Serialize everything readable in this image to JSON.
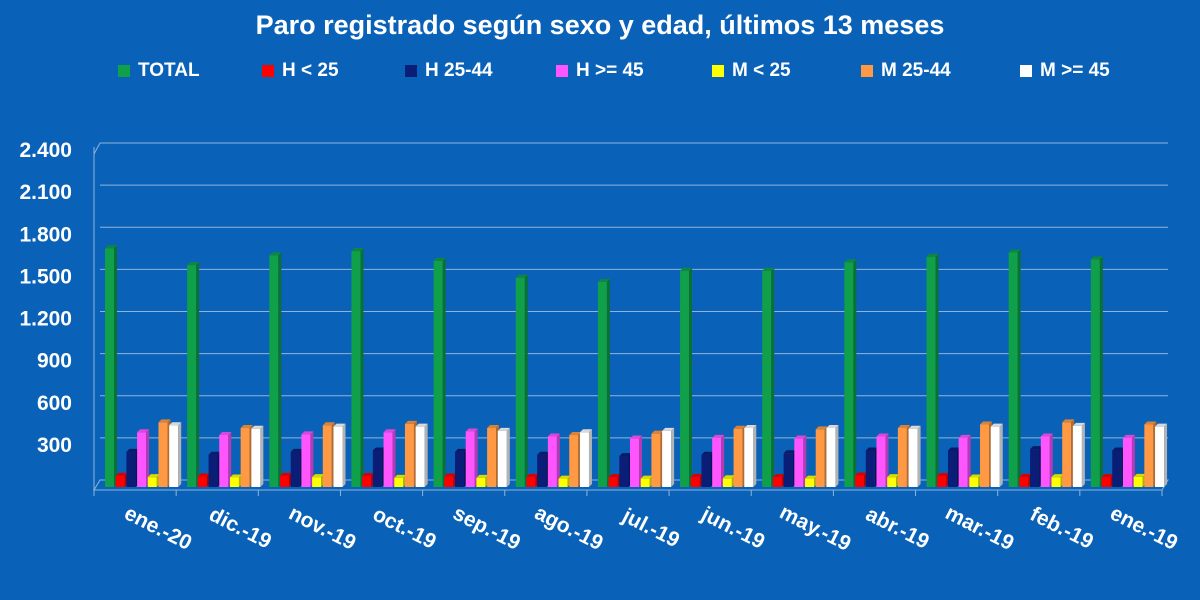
{
  "chart_data": {
    "type": "bar",
    "title": "Paro registrado según sexo y edad, últimos 13 meses",
    "xlabel": "",
    "ylabel": "",
    "ylim": [
      0,
      2400
    ],
    "yticks": [
      "300",
      "600",
      "900",
      "1.200",
      "1.500",
      "1.800",
      "2.100",
      "2.400"
    ],
    "grid": true,
    "legend_position": "top",
    "categories": [
      "ene.-20",
      "dic.-19",
      "nov.-19",
      "oct.-19",
      "sep.-19",
      "ago.-19",
      "jul.-19",
      "jun.-19",
      "may.-19",
      "abr.-19",
      "mar.-19",
      "feb.-19",
      "ene.-19"
    ],
    "series": [
      {
        "name": "TOTAL",
        "color": "#10a04a",
        "values": [
          1700,
          1580,
          1650,
          1680,
          1610,
          1490,
          1460,
          1540,
          1540,
          1600,
          1640,
          1670,
          1620
        ]
      },
      {
        "name": "H < 25",
        "color": "#ff0000",
        "values": [
          80,
          75,
          80,
          78,
          75,
          72,
          70,
          72,
          70,
          82,
          78,
          72,
          70
        ]
      },
      {
        "name": "H 25-44",
        "color": "#0a1e78",
        "values": [
          250,
          230,
          250,
          260,
          250,
          230,
          220,
          230,
          240,
          260,
          260,
          270,
          260
        ]
      },
      {
        "name": "H >= 45",
        "color": "#ff55ff",
        "values": [
          390,
          370,
          375,
          390,
          395,
          360,
          345,
          350,
          345,
          360,
          350,
          360,
          350
        ]
      },
      {
        "name": "M < 25",
        "color": "#ffff00",
        "values": [
          70,
          68,
          70,
          65,
          65,
          60,
          60,
          62,
          60,
          70,
          68,
          70,
          72
        ]
      },
      {
        "name": "M 25-44",
        "color": "#ff9944",
        "values": [
          460,
          420,
          440,
          450,
          420,
          370,
          380,
          415,
          410,
          420,
          445,
          460,
          445
        ]
      },
      {
        "name": "M >= 45",
        "color": "#ffffff",
        "values": [
          440,
          415,
          430,
          430,
          400,
          390,
          400,
          420,
          420,
          415,
          430,
          435,
          430
        ]
      }
    ]
  }
}
